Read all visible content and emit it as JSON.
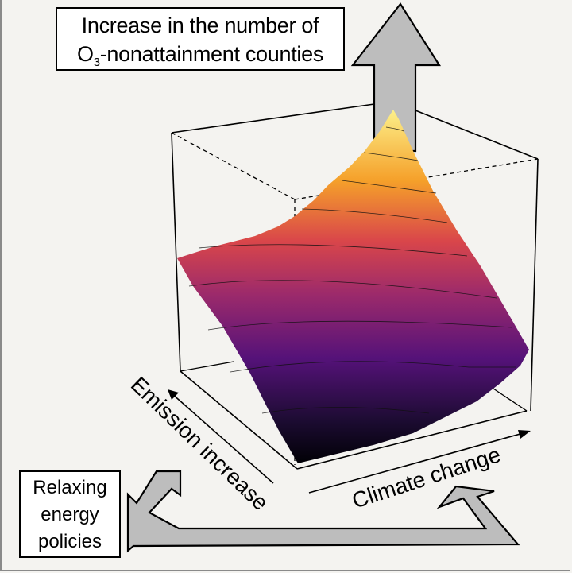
{
  "title_box": {
    "line1": "Increase in the number of",
    "line2_prefix": "O",
    "line2_sub": "3",
    "line2_suffix": "-nonattainment counties"
  },
  "axes": {
    "emission": "Emission increase",
    "climate": "Climate change"
  },
  "policy_box": {
    "line1": "Relaxing",
    "line2": "energy",
    "line3": "policies"
  },
  "colors": {
    "arrow_fill": "#bdbdbd",
    "surface_colormap": [
      "#fcf08a",
      "#f5a02a",
      "#d9464a",
      "#9c2a6b",
      "#551279",
      "#1b0b30",
      "#000004"
    ]
  }
}
